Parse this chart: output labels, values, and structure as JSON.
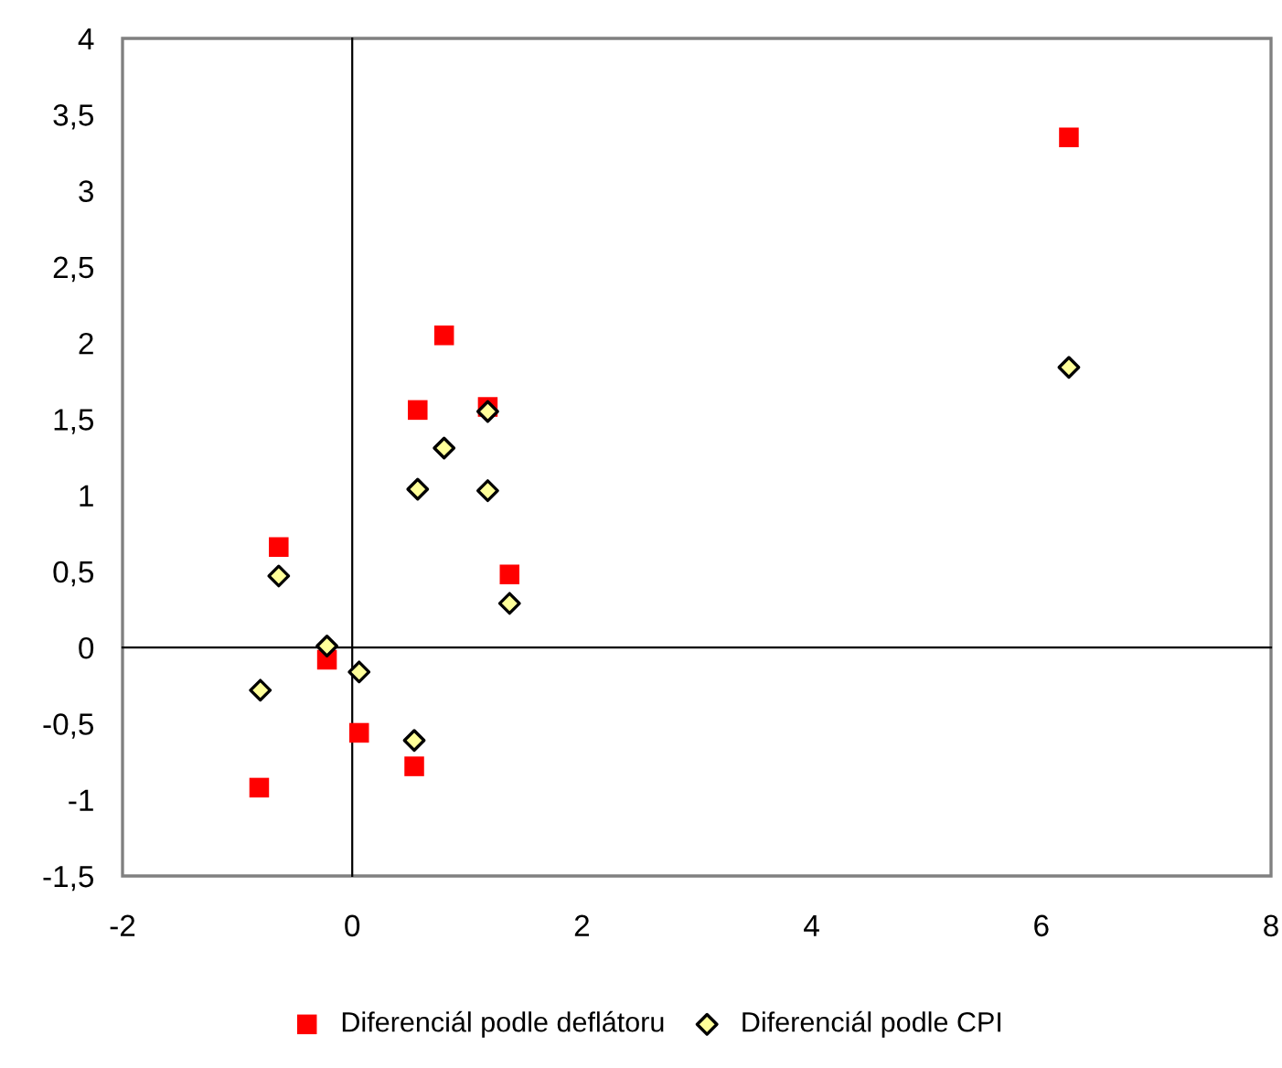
{
  "chart_data": {
    "type": "scatter",
    "series": [
      {
        "name": "Diferenciál podle deflátoru",
        "color": "#ff0000",
        "marker": "square",
        "x": [
          -0.81,
          -0.64,
          -0.22,
          0.06,
          0.54,
          0.57,
          0.8,
          1.18,
          1.37,
          6.24
        ],
        "values": [
          -0.92,
          0.66,
          -0.08,
          -0.56,
          -0.78,
          1.56,
          2.05,
          1.58,
          0.48,
          3.35
        ]
      },
      {
        "name": "Diferenciál podle CPI",
        "color": "#ffff99",
        "marker": "diamond",
        "x": [
          -0.8,
          -0.64,
          -0.22,
          0.06,
          0.54,
          0.57,
          0.8,
          1.18,
          1.18,
          1.37,
          6.24
        ],
        "values": [
          -0.28,
          0.47,
          0.01,
          -0.16,
          -0.61,
          1.04,
          1.31,
          1.03,
          1.55,
          0.29,
          1.84
        ]
      }
    ],
    "xlim": [
      -2,
      8
    ],
    "xticks": [
      -2,
      0,
      2,
      4,
      6,
      8
    ],
    "ylim": [
      -1.5,
      4
    ],
    "yticks": [
      {
        "value": -1.5,
        "label": "-1,5"
      },
      -1,
      {
        "value": -0.5,
        "label": "-0,5"
      },
      0,
      {
        "value": 0.5,
        "label": "0,5"
      },
      1,
      {
        "value": 1.5,
        "label": "1,5"
      },
      2,
      {
        "value": 2.5,
        "label": "2,5"
      },
      3,
      {
        "value": 3.5,
        "label": "3,5"
      },
      4
    ],
    "legend": "bottom"
  }
}
